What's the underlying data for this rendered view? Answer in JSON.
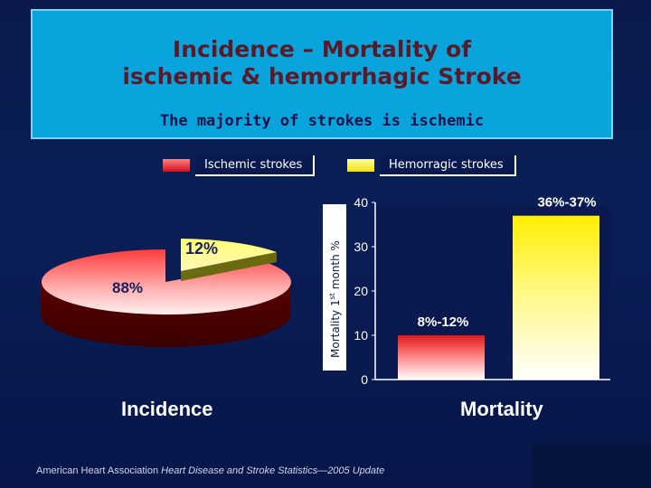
{
  "header": {
    "title_line1": "Incidence – Mortality of",
    "title_line2": "ischemic & hemorrhagic Stroke",
    "subtitle": "The majority of strokes is ischemic"
  },
  "legend": [
    {
      "label": "Ischemic strokes",
      "color": "#e8232a"
    },
    {
      "label": "Hemorragic strokes",
      "color": "#f5ee1f"
    }
  ],
  "sections": {
    "incidence_label": "Incidence",
    "mortality_label": "Mortality"
  },
  "footer": {
    "text_prefix": "American Heart Association ",
    "text_italic": "Heart Disease and Stroke Statistics—2005 Update"
  },
  "chart_data": [
    {
      "type": "pie",
      "categories": [
        "Ischemic strokes",
        "Hemorragic strokes"
      ],
      "values": [
        88,
        12
      ],
      "data_labels": [
        "88%",
        "12%"
      ],
      "title": "Incidence"
    },
    {
      "type": "bar",
      "categories": [
        "Ischemic strokes",
        "Hemorragic strokes"
      ],
      "values": [
        10,
        37
      ],
      "data_labels": [
        "8%-12%",
        "36%-37%"
      ],
      "ylabel": "Mortality 1st month %",
      "ylabel_main": "Mortality 1",
      "ylabel_sup": "st",
      "ylabel_rest": " month %",
      "ylim": [
        0,
        40
      ],
      "yticks": [
        "0",
        "10",
        "20",
        "30",
        "40"
      ],
      "title": "Mortality"
    }
  ]
}
